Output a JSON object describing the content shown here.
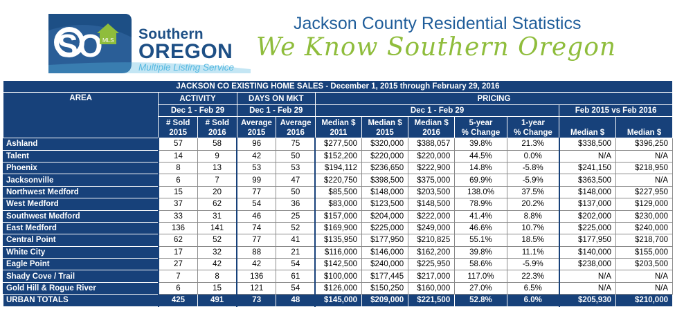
{
  "header": {
    "logo_so": "SO",
    "logo_mls": "MLS",
    "logo_line1": "Southern",
    "logo_line2": "OREGON",
    "logo_line3": "Multiple Listing Service",
    "title": "Jackson County Residential Statistics",
    "slogan": "We Know Southern Oregon"
  },
  "colors": {
    "navy": "#17417a",
    "sky": "#55b8e0",
    "green": "#8fbd3c"
  },
  "table": {
    "banner": "JACKSON CO EXISTING HOME SALES - December 1, 2015 through February 29, 2016",
    "h_area": "AREA",
    "h_activity": "ACTIVITY",
    "h_days": "DAYS ON MKT",
    "h_pricing": "PRICING",
    "h_period1": "Dec 1 - Feb 29",
    "h_period2": "Dec 1 - Feb 29",
    "h_period3": "Dec 1 - Feb 29",
    "h_feb": "Feb 2015 vs Feb 2016",
    "cols": [
      [
        "# Sold",
        "2015"
      ],
      [
        "# Sold",
        "2016"
      ],
      [
        "Average",
        "2015"
      ],
      [
        "Average",
        "2016"
      ],
      [
        "Median $",
        "2011"
      ],
      [
        "Median $",
        "2015"
      ],
      [
        "Median $",
        "2016"
      ],
      [
        "5-year",
        "% Change"
      ],
      [
        "1-year",
        "% Change"
      ],
      [
        "",
        "Median $"
      ],
      [
        "",
        "Median $"
      ]
    ],
    "rows": [
      [
        "Ashland",
        "57",
        "58",
        "96",
        "75",
        "$277,500",
        "$320,000",
        "$388,057",
        "39.8%",
        "21.3%",
        "$338,500",
        "$396,250"
      ],
      [
        "Talent",
        "14",
        "9",
        "42",
        "50",
        "$152,200",
        "$220,000",
        "$220,000",
        "44.5%",
        "0.0%",
        "N/A",
        "N/A"
      ],
      [
        "Phoenix",
        "8",
        "13",
        "53",
        "53",
        "$194,112",
        "$236,650",
        "$222,900",
        "14.8%",
        "-5.8%",
        "$241,150",
        "$218,950"
      ],
      [
        "Jacksonville",
        "6",
        "7",
        "99",
        "47",
        "$220,750",
        "$398,500",
        "$375,000",
        "69.9%",
        "-5.9%",
        "$363,500",
        "N/A"
      ],
      [
        "Northwest Medford",
        "15",
        "20",
        "77",
        "50",
        "$85,500",
        "$148,000",
        "$203,500",
        "138.0%",
        "37.5%",
        "$148,000",
        "$227,950"
      ],
      [
        "West Medford",
        "37",
        "62",
        "54",
        "36",
        "$83,000",
        "$123,500",
        "$148,500",
        "78.9%",
        "20.2%",
        "$137,000",
        "$129,000"
      ],
      [
        "Southwest Medford",
        "33",
        "31",
        "46",
        "25",
        "$157,000",
        "$204,000",
        "$222,000",
        "41.4%",
        "8.8%",
        "$202,000",
        "$230,000"
      ],
      [
        "East Medford",
        "136",
        "141",
        "74",
        "52",
        "$169,900",
        "$225,000",
        "$249,000",
        "46.6%",
        "10.7%",
        "$225,000",
        "$240,000"
      ],
      [
        "Central Point",
        "62",
        "52",
        "77",
        "41",
        "$135,950",
        "$177,950",
        "$210,825",
        "55.1%",
        "18.5%",
        "$177,950",
        "$218,700"
      ],
      [
        "White City",
        "17",
        "32",
        "88",
        "21",
        "$116,000",
        "$146,000",
        "$162,200",
        "39.8%",
        "11.1%",
        "$140,000",
        "$155,000"
      ],
      [
        "Eagle Point",
        "27",
        "42",
        "42",
        "54",
        "$142,500",
        "$240,000",
        "$225,950",
        "58.6%",
        "-5.9%",
        "$238,000",
        "$203,500"
      ],
      [
        "Shady Cove / Trail",
        "7",
        "8",
        "136",
        "61",
        "$100,000",
        "$177,445",
        "$217,000",
        "117.0%",
        "22.3%",
        "N/A",
        "N/A"
      ],
      [
        "Gold Hill & Rogue River",
        "6",
        "15",
        "121",
        "54",
        "$126,000",
        "$150,250",
        "$160,000",
        "27.0%",
        "6.5%",
        "N/A",
        "N/A"
      ]
    ],
    "totals": [
      "URBAN TOTALS",
      "425",
      "491",
      "73",
      "48",
      "$145,000",
      "$209,000",
      "$221,500",
      "52.8%",
      "6.0%",
      "$205,930",
      "$210,000"
    ]
  }
}
